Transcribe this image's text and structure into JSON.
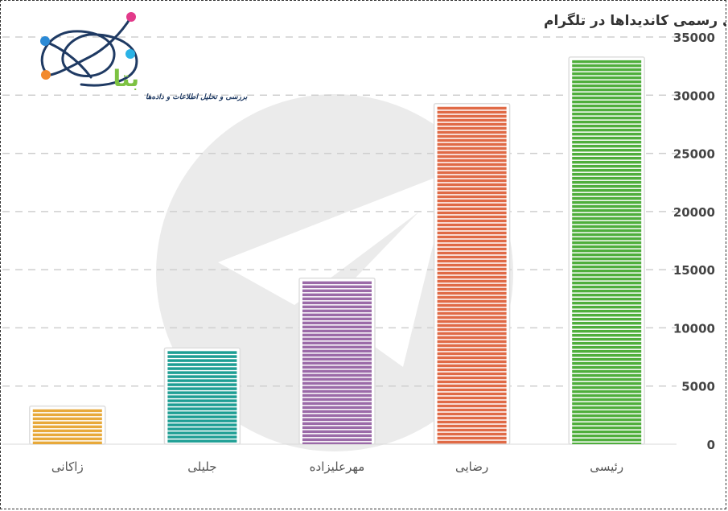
{
  "chart_data": {
    "type": "bar",
    "title": "نمودار میزان کاربر عضو کانال‌های رسمی کاندیداها در تلگرام",
    "categories": [
      "زاکانی",
      "جلیلی",
      "مهرعلیزاده",
      "رضایی",
      "رئیسی"
    ],
    "values": [
      3000,
      8000,
      14000,
      29000,
      33000
    ],
    "colors": [
      "#e8a93a",
      "#1e9e94",
      "#9b6aa8",
      "#e06a46",
      "#4fae3c"
    ],
    "ylim": [
      0,
      35000
    ],
    "yticks": [
      0,
      5000,
      10000,
      15000,
      20000,
      25000,
      30000,
      35000
    ],
    "ytick_labels": [
      "0",
      "5000",
      "10000",
      "15000",
      "20000",
      "25000",
      "30000",
      "35000"
    ],
    "grid": true,
    "xlabel": "",
    "ylabel": ""
  },
  "logo": {
    "brand": "بتا",
    "tagline": "بررسی و تحلیل اطلاعات و داده‌ها",
    "dot_colors": [
      "#e23a8a",
      "#2b8ad6",
      "#f28a2e",
      "#2bb3e6"
    ]
  },
  "watermark": {
    "icon": "telegram-logo-icon",
    "color": "#ebebeb"
  }
}
